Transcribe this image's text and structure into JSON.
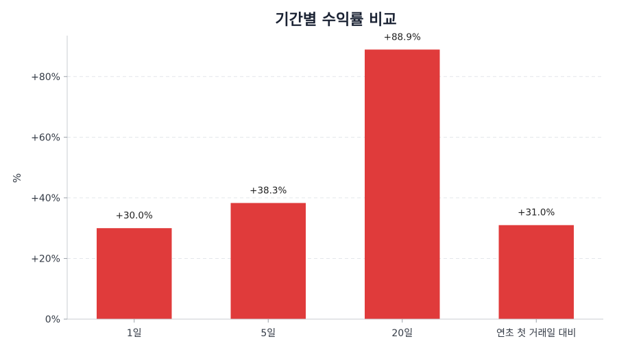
{
  "chart_data": {
    "type": "bar",
    "title": "기간별 수익률 비교",
    "xlabel": "",
    "ylabel": "%",
    "categories": [
      "1일",
      "5일",
      "20일",
      "연초 첫 거래일 대비"
    ],
    "values": [
      30.0,
      38.3,
      88.9,
      31.0
    ],
    "data_labels": [
      "+30.0%",
      "+38.3%",
      "+88.9%",
      "+31.0%"
    ],
    "yticks": [
      0,
      20,
      40,
      60,
      80
    ],
    "ytick_labels": [
      "0%",
      "+20%",
      "+40%",
      "+60%",
      "+80%"
    ],
    "ylim": [
      0,
      93.5
    ],
    "grid": "y-dashed",
    "bar_color": "#e03b3b",
    "legend": "none"
  }
}
